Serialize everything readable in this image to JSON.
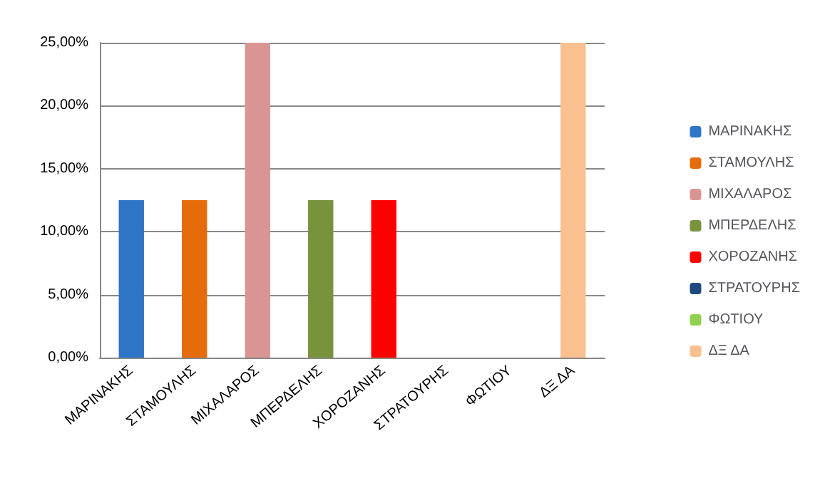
{
  "chart_data": {
    "type": "bar",
    "categories": [
      "ΜΑΡΙΝΑΚΗΣ",
      "ΣΤΑΜΟΥΛΗΣ",
      "ΜΙΧΑΛΑΡΟΣ",
      "ΜΠΕΡΔΕΛΗΣ",
      "ΧΟΡΟΖΑΝΗΣ",
      "ΣΤΡΑΤΟΥΡΗΣ",
      "ΦΩΤΙΟΥ",
      "ΔΞ ΔΑ"
    ],
    "series": [
      {
        "name": "ΜΑΡΙΝΑΚΗΣ",
        "color": "#2e75c6",
        "values": [
          12.5,
          null,
          null,
          null,
          null,
          null,
          null,
          null
        ]
      },
      {
        "name": "ΣΤΑΜΟΥΛΗΣ",
        "color": "#e46c0a",
        "values": [
          null,
          12.5,
          null,
          null,
          null,
          null,
          null,
          null
        ]
      },
      {
        "name": "ΜΙΧΑΛΑΡΟΣ",
        "color": "#d99594",
        "values": [
          null,
          null,
          25,
          null,
          null,
          null,
          null,
          null
        ]
      },
      {
        "name": "ΜΠΕΡΔΕΛΗΣ",
        "color": "#77933c",
        "values": [
          null,
          null,
          null,
          12.5,
          null,
          null,
          null,
          null
        ]
      },
      {
        "name": "ΧΟΡΟΖΑΝΗΣ",
        "color": "#ff0000",
        "values": [
          null,
          null,
          null,
          null,
          12.5,
          null,
          null,
          null
        ]
      },
      {
        "name": "ΣΤΡΑΤΟΥΡΗΣ",
        "color": "#1f497d",
        "values": [
          null,
          null,
          null,
          null,
          null,
          0,
          null,
          null
        ]
      },
      {
        "name": "ΦΩΤΙΟΥ",
        "color": "#92d050",
        "values": [
          null,
          null,
          null,
          null,
          null,
          null,
          0,
          null
        ]
      },
      {
        "name": "ΔΞ ΔΑ",
        "color": "#fac08f",
        "values": [
          null,
          null,
          null,
          null,
          null,
          null,
          null,
          25
        ]
      }
    ],
    "stacked": true,
    "ylim": [
      0,
      25
    ],
    "yticks": [
      {
        "value": 0,
        "label": "0,00%"
      },
      {
        "value": 5,
        "label": "5,00%"
      },
      {
        "value": 10,
        "label": "10,00%"
      },
      {
        "value": 15,
        "label": "15,00%"
      },
      {
        "value": 20,
        "label": "20,00%"
      },
      {
        "value": 25,
        "label": "25,00%"
      }
    ],
    "grid": "y",
    "legend": "right"
  }
}
